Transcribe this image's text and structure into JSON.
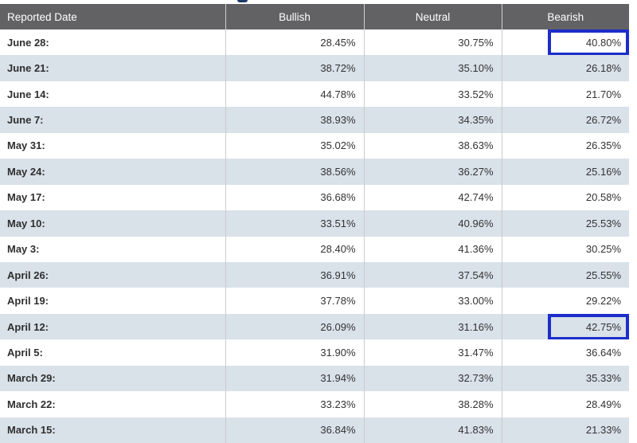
{
  "table": {
    "columns": [
      "Reported Date",
      "Bullish",
      "Neutral",
      "Bearish"
    ],
    "rows": [
      {
        "date": "June 28:",
        "bullish": "28.45%",
        "neutral": "30.75%",
        "bearish": "40.80%",
        "highlight": "bearish"
      },
      {
        "date": "June 21:",
        "bullish": "38.72%",
        "neutral": "35.10%",
        "bearish": "26.18%"
      },
      {
        "date": "June 14:",
        "bullish": "44.78%",
        "neutral": "33.52%",
        "bearish": "21.70%"
      },
      {
        "date": "June 7:",
        "bullish": "38.93%",
        "neutral": "34.35%",
        "bearish": "26.72%"
      },
      {
        "date": "May 31:",
        "bullish": "35.02%",
        "neutral": "38.63%",
        "bearish": "26.35%"
      },
      {
        "date": "May 24:",
        "bullish": "38.56%",
        "neutral": "36.27%",
        "bearish": "25.16%"
      },
      {
        "date": "May 17:",
        "bullish": "36.68%",
        "neutral": "42.74%",
        "bearish": "20.58%"
      },
      {
        "date": "May 10:",
        "bullish": "33.51%",
        "neutral": "40.96%",
        "bearish": "25.53%"
      },
      {
        "date": "May 3:",
        "bullish": "28.40%",
        "neutral": "41.36%",
        "bearish": "30.25%"
      },
      {
        "date": "April 26:",
        "bullish": "36.91%",
        "neutral": "37.54%",
        "bearish": "25.55%"
      },
      {
        "date": "April 19:",
        "bullish": "37.78%",
        "neutral": "33.00%",
        "bearish": "29.22%"
      },
      {
        "date": "April 12:",
        "bullish": "26.09%",
        "neutral": "31.16%",
        "bearish": "42.75%",
        "highlight": "bearish"
      },
      {
        "date": "April 5:",
        "bullish": "31.90%",
        "neutral": "31.47%",
        "bearish": "36.64%"
      },
      {
        "date": "March 29:",
        "bullish": "31.94%",
        "neutral": "32.73%",
        "bearish": "35.33%"
      },
      {
        "date": "March 22:",
        "bullish": "33.23%",
        "neutral": "38.28%",
        "bearish": "28.49%"
      },
      {
        "date": "March 15:",
        "bullish": "36.84%",
        "neutral": "41.83%",
        "bearish": "21.33%"
      }
    ]
  },
  "chart_data": {
    "type": "table",
    "columns": [
      "Reported Date",
      "Bullish",
      "Neutral",
      "Bearish"
    ],
    "categories": [
      "June 28:",
      "June 21:",
      "June 14:",
      "June 7:",
      "May 31:",
      "May 24:",
      "May 17:",
      "May 10:",
      "May 3:",
      "April 26:",
      "April 19:",
      "April 12:",
      "April 5:",
      "March 29:",
      "March 22:",
      "March 15:"
    ],
    "series": [
      {
        "name": "Bullish",
        "values": [
          28.45,
          38.72,
          44.78,
          38.93,
          35.02,
          38.56,
          36.68,
          33.51,
          28.4,
          36.91,
          37.78,
          26.09,
          31.9,
          31.94,
          33.23,
          36.84
        ]
      },
      {
        "name": "Neutral",
        "values": [
          30.75,
          35.1,
          33.52,
          34.35,
          38.63,
          36.27,
          42.74,
          40.96,
          41.36,
          37.54,
          33.0,
          31.16,
          31.47,
          32.73,
          38.28,
          41.83
        ]
      },
      {
        "name": "Bearish",
        "values": [
          40.8,
          26.18,
          21.7,
          26.72,
          26.35,
          25.16,
          20.58,
          25.53,
          30.25,
          25.55,
          29.22,
          42.75,
          36.64,
          35.33,
          28.49,
          21.33
        ]
      }
    ],
    "highlighted_cells": [
      {
        "row": "June 28:",
        "column": "Bearish",
        "value": "40.80%"
      },
      {
        "row": "April 12:",
        "column": "Bearish",
        "value": "42.75%"
      }
    ]
  },
  "colors": {
    "header_bg": "#626264",
    "header_text": "#ffffff",
    "row_alt_bg": "#d9e1e9",
    "row_bg": "#ffffff",
    "cell_text": "#333333",
    "column_divider": "#cbcbcb",
    "highlight_border": "#1c2dc9",
    "clipped_title": "#1e3a66"
  }
}
